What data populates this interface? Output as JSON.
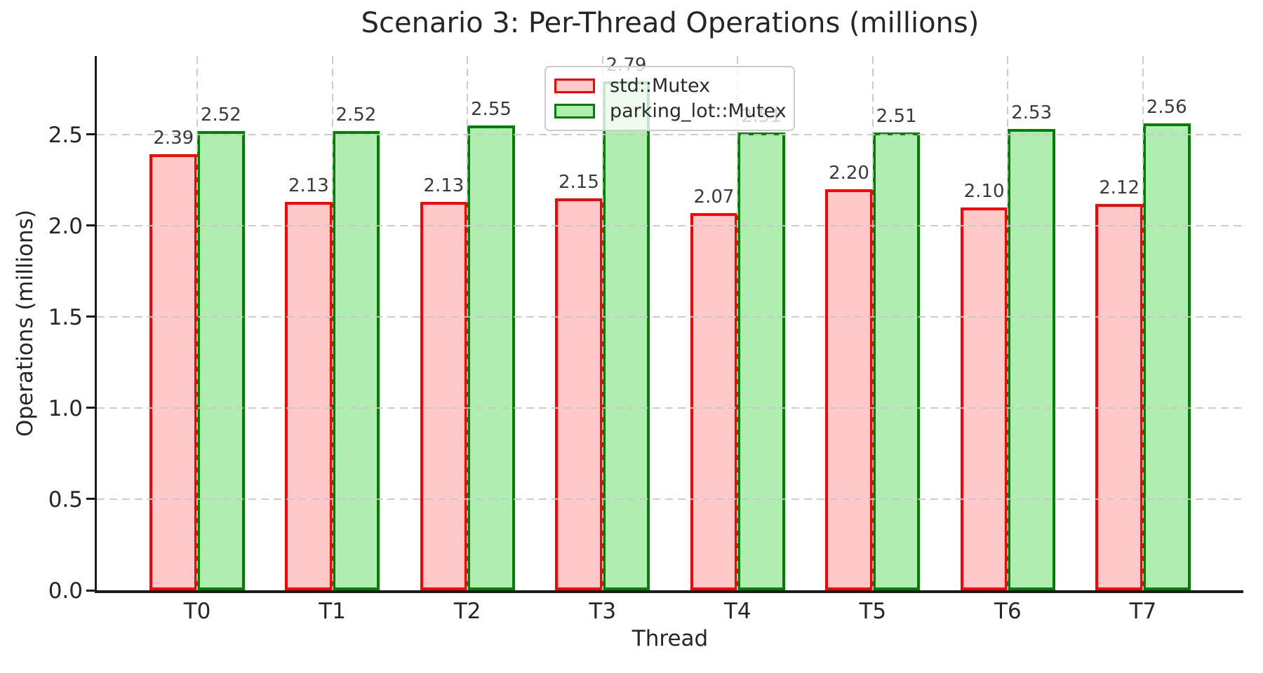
{
  "figure": {
    "title": "Scenario 3: Per-Thread Operations (millions)",
    "xlabel": "Thread",
    "ylabel": "Operations (millions)"
  },
  "legend": {
    "items": [
      {
        "label": "std::Mutex"
      },
      {
        "label": "parking_lot::Mutex"
      }
    ]
  },
  "chart_data": {
    "type": "bar",
    "title": "Scenario 3: Per-Thread Operations (millions)",
    "xlabel": "Thread",
    "ylabel": "Operations (millions)",
    "categories": [
      "T0",
      "T1",
      "T2",
      "T3",
      "T4",
      "T5",
      "T6",
      "T7"
    ],
    "series": [
      {
        "name": "std::Mutex",
        "edge_color": "#ff0000",
        "fill_color": "#ffc9c9",
        "values": [
          2.39,
          2.13,
          2.13,
          2.15,
          2.07,
          2.2,
          2.1,
          2.12
        ]
      },
      {
        "name": "parking_lot::Mutex",
        "edge_color": "#008000",
        "fill_color": "#b0edb0",
        "values": [
          2.52,
          2.52,
          2.55,
          2.79,
          2.51,
          2.51,
          2.53,
          2.56
        ]
      }
    ],
    "yticks": [
      0.0,
      0.5,
      1.0,
      1.5,
      2.0,
      2.5
    ],
    "ylim": [
      0,
      2.93
    ],
    "grid": true,
    "grid_style": "dashed",
    "legend_position": "upper center",
    "value_labels": true,
    "value_label_format": "2dp"
  },
  "colors": {
    "grid": "#c6c6c6",
    "spine": "#1a1a1a",
    "text": "#262626",
    "value_label": "#3a3a3a",
    "legend_border": "#cccccc"
  }
}
